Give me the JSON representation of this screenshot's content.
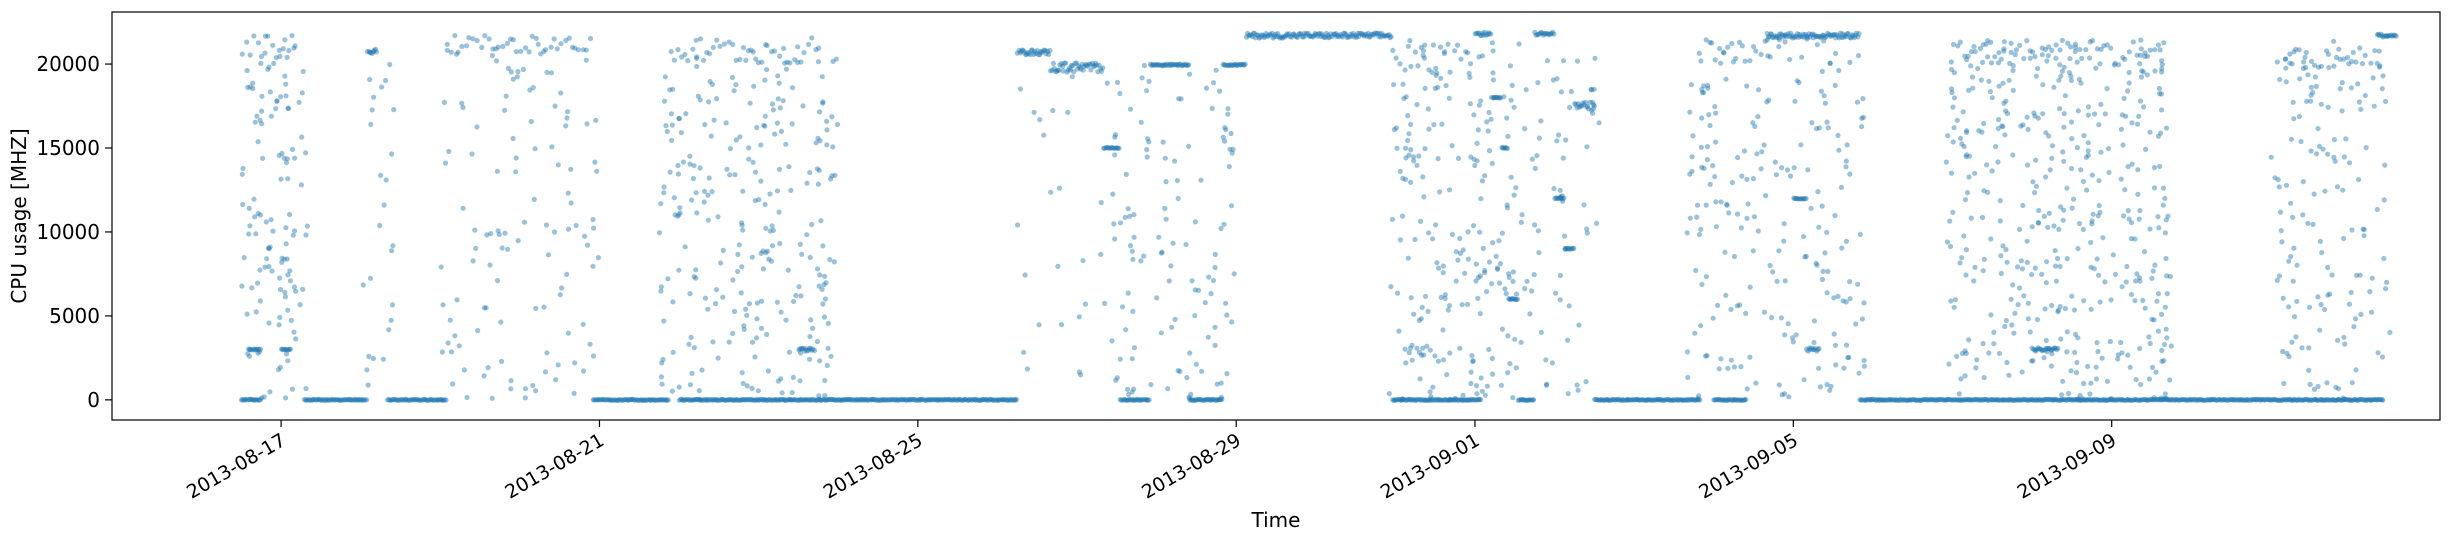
{
  "chart_data": {
    "type": "scatter",
    "title": "",
    "xlabel": "Time",
    "ylabel": "CPU usage [MHZ]",
    "xlim": [
      "2013-08-14T21:00",
      "2013-09-13T03:00"
    ],
    "ylim": [
      -1200,
      23100
    ],
    "grid": false,
    "legend": "none",
    "color": "#1f77b4",
    "point_opacity": 0.45,
    "x_ticks": [
      "2013-08-17",
      "2013-08-21",
      "2013-08-25",
      "2013-08-29",
      "2013-09-01",
      "2013-09-05",
      "2013-09-09"
    ],
    "y_ticks": [
      0,
      5000,
      10000,
      15000,
      20000
    ],
    "y_tick_labels": [
      "0",
      "5000",
      "10000",
      "15000",
      "20000"
    ],
    "segments": [
      {
        "start": "2013-08-16T12:00",
        "end": "2013-08-17T05:00",
        "level": 21000,
        "spread": 700,
        "dense": false
      },
      {
        "start": "2013-08-16T12:00",
        "end": "2013-08-16T18:00",
        "level": 0,
        "spread": 0,
        "dense": true
      },
      {
        "start": "2013-08-16T14:00",
        "end": "2013-08-16T18:00",
        "level": 3000,
        "spread": 0,
        "dense": true
      },
      {
        "start": "2013-08-17T00:00",
        "end": "2013-08-17T03:00",
        "level": 3000,
        "spread": 0,
        "dense": true
      },
      {
        "start": "2013-08-17T07:00",
        "end": "2013-08-18T02:00",
        "level": 0,
        "spread": 0,
        "dense": true
      },
      {
        "start": "2013-08-18T02:00",
        "end": "2013-08-18T05:00",
        "level": 20800,
        "spread": 200,
        "dense": true
      },
      {
        "start": "2013-08-18T08:00",
        "end": "2013-08-19T02:00",
        "level": 0,
        "spread": 0,
        "dense": true
      },
      {
        "start": "2013-08-19T02:00",
        "end": "2013-08-20T22:00",
        "level": 21200,
        "spread": 500,
        "dense": false
      },
      {
        "start": "2013-08-19T20:00",
        "end": "2013-08-20T00:00",
        "level": 19200,
        "spread": 600,
        "dense": false
      },
      {
        "start": "2013-08-20T22:00",
        "end": "2013-08-21T21:00",
        "level": 0,
        "spread": 0,
        "dense": true
      },
      {
        "start": "2013-08-21T21:00",
        "end": "2013-08-23T19:00",
        "level": 20800,
        "spread": 800,
        "dense": false
      },
      {
        "start": "2013-08-22T00:00",
        "end": "2013-08-23T19:00",
        "level": 0,
        "spread": 0,
        "dense": true
      },
      {
        "start": "2013-08-23T12:00",
        "end": "2013-08-23T17:00",
        "level": 3000,
        "spread": 100,
        "dense": true
      },
      {
        "start": "2013-08-23T19:00",
        "end": "2013-08-26T06:00",
        "level": 0,
        "spread": 0,
        "dense": true
      },
      {
        "start": "2013-08-26T06:00",
        "end": "2013-08-26T16:00",
        "level": 20700,
        "spread": 150,
        "dense": true
      },
      {
        "start": "2013-08-26T16:00",
        "end": "2013-08-27T08:00",
        "level": 19800,
        "spread": 300,
        "dense": true
      },
      {
        "start": "2013-08-27T08:00",
        "end": "2013-08-27T13:00",
        "level": 15000,
        "spread": 0,
        "dense": true
      },
      {
        "start": "2013-08-27T13:00",
        "end": "2013-08-27T22:00",
        "level": 0,
        "spread": 0,
        "dense": true
      },
      {
        "start": "2013-08-27T22:00",
        "end": "2013-08-28T10:00",
        "level": 19950,
        "spread": 50,
        "dense": true
      },
      {
        "start": "2013-08-28T10:00",
        "end": "2013-08-28T20:00",
        "level": 0,
        "spread": 0,
        "dense": true
      },
      {
        "start": "2013-08-28T20:00",
        "end": "2013-08-29T03:00",
        "level": 19950,
        "spread": 50,
        "dense": true
      },
      {
        "start": "2013-08-29T03:00",
        "end": "2013-08-30T23:00",
        "level": 21700,
        "spread": 150,
        "dense": true
      },
      {
        "start": "2013-08-30T23:00",
        "end": "2013-08-31T23:00",
        "level": 20300,
        "spread": 900,
        "dense": false
      },
      {
        "start": "2013-08-30T23:00",
        "end": "2013-09-01T02:00",
        "level": 0,
        "spread": 0,
        "dense": true
      },
      {
        "start": "2013-08-31T04:00",
        "end": "2013-08-31T08:00",
        "level": 14200,
        "spread": 400,
        "dense": false
      },
      {
        "start": "2013-08-31T06:00",
        "end": "2013-08-31T10:00",
        "level": 3000,
        "spread": 200,
        "dense": false
      },
      {
        "start": "2013-09-01T00:00",
        "end": "2013-09-01T05:00",
        "level": 21800,
        "spread": 100,
        "dense": true
      },
      {
        "start": "2013-09-01T05:00",
        "end": "2013-09-01T08:00",
        "level": 18000,
        "spread": 0,
        "dense": true
      },
      {
        "start": "2013-09-01T08:00",
        "end": "2013-09-01T10:00",
        "level": 15000,
        "spread": 0,
        "dense": true
      },
      {
        "start": "2013-09-01T10:00",
        "end": "2013-09-01T13:00",
        "level": 6000,
        "spread": 0,
        "dense": true
      },
      {
        "start": "2013-09-01T13:00",
        "end": "2013-09-01T18:00",
        "level": 0,
        "spread": 0,
        "dense": true
      },
      {
        "start": "2013-09-01T18:00",
        "end": "2013-09-02T00:00",
        "level": 21800,
        "spread": 100,
        "dense": true
      },
      {
        "start": "2013-09-02T00:00",
        "end": "2013-09-02T03:00",
        "level": 12000,
        "spread": 0,
        "dense": true
      },
      {
        "start": "2013-09-02T03:00",
        "end": "2013-09-02T06:00",
        "level": 9000,
        "spread": 0,
        "dense": true
      },
      {
        "start": "2013-09-02T06:00",
        "end": "2013-09-02T12:00",
        "level": 17500,
        "spread": 300,
        "dense": true
      },
      {
        "start": "2013-09-02T12:00",
        "end": "2013-09-03T20:00",
        "level": 0,
        "spread": 0,
        "dense": true
      },
      {
        "start": "2013-09-03T20:00",
        "end": "2013-09-04T16:00",
        "level": 20800,
        "spread": 700,
        "dense": false
      },
      {
        "start": "2013-09-04T00:00",
        "end": "2013-09-04T10:00",
        "level": 0,
        "spread": 0,
        "dense": true
      },
      {
        "start": "2013-09-04T16:00",
        "end": "2013-09-05T20:00",
        "level": 21700,
        "spread": 150,
        "dense": true
      },
      {
        "start": "2013-09-05T00:00",
        "end": "2013-09-05T04:00",
        "level": 12000,
        "spread": 0,
        "dense": true
      },
      {
        "start": "2013-09-05T04:00",
        "end": "2013-09-05T08:00",
        "level": 3000,
        "spread": 100,
        "dense": true
      },
      {
        "start": "2013-09-05T12:00",
        "end": "2013-09-05T18:00",
        "level": 6000,
        "spread": 200,
        "dense": false
      },
      {
        "start": "2013-09-05T20:00",
        "end": "2013-09-06T23:00",
        "level": 0,
        "spread": 0,
        "dense": true
      },
      {
        "start": "2013-09-06T23:00",
        "end": "2013-09-09T16:00",
        "level": 20600,
        "spread": 900,
        "dense": false
      },
      {
        "start": "2013-09-06T23:00",
        "end": "2013-09-09T16:00",
        "level": 0,
        "spread": 0,
        "dense": true
      },
      {
        "start": "2013-09-08T00:00",
        "end": "2013-09-08T08:00",
        "level": 3000,
        "spread": 100,
        "dense": true
      },
      {
        "start": "2013-09-09T16:00",
        "end": "2013-09-11T04:00",
        "level": 0,
        "spread": 0,
        "dense": true
      },
      {
        "start": "2013-09-11T04:00",
        "end": "2013-09-12T10:00",
        "level": 20400,
        "spread": 700,
        "dense": false
      },
      {
        "start": "2013-09-11T04:00",
        "end": "2013-09-12T10:00",
        "level": 0,
        "spread": 0,
        "dense": true
      },
      {
        "start": "2013-09-11T12:00",
        "end": "2013-09-11T18:00",
        "level": 14800,
        "spread": 300,
        "dense": false
      },
      {
        "start": "2013-09-12T08:00",
        "end": "2013-09-12T14:00",
        "level": 21700,
        "spread": 100,
        "dense": true
      }
    ],
    "scatter_ranges": [
      {
        "start": "2013-08-16T12:00",
        "end": "2013-08-17T08:00",
        "min": 0,
        "max": 21000,
        "count": 120
      },
      {
        "start": "2013-08-18T00:00",
        "end": "2013-08-18T12:00",
        "min": 0,
        "max": 21000,
        "count": 25
      },
      {
        "start": "2013-08-19T00:00",
        "end": "2013-08-21T00:00",
        "min": 0,
        "max": 21000,
        "count": 110
      },
      {
        "start": "2013-08-21T18:00",
        "end": "2013-08-24T00:00",
        "min": 0,
        "max": 21000,
        "count": 260
      },
      {
        "start": "2013-08-26T06:00",
        "end": "2013-08-27T10:00",
        "min": 0,
        "max": 20000,
        "count": 25
      },
      {
        "start": "2013-08-27T10:00",
        "end": "2013-08-29T00:00",
        "min": 0,
        "max": 20000,
        "count": 120
      },
      {
        "start": "2013-08-30T22:00",
        "end": "2013-09-01T12:00",
        "min": 0,
        "max": 21500,
        "count": 200
      },
      {
        "start": "2013-09-01T12:00",
        "end": "2013-09-02T14:00",
        "min": 0,
        "max": 21500,
        "count": 70
      },
      {
        "start": "2013-09-03T16:00",
        "end": "2013-09-05T22:00",
        "min": 0,
        "max": 21500,
        "count": 210
      },
      {
        "start": "2013-09-06T22:00",
        "end": "2013-09-09T18:00",
        "min": 0,
        "max": 21500,
        "count": 420
      },
      {
        "start": "2013-09-11T00:00",
        "end": "2013-09-12T12:00",
        "min": 0,
        "max": 21500,
        "count": 140
      }
    ]
  }
}
